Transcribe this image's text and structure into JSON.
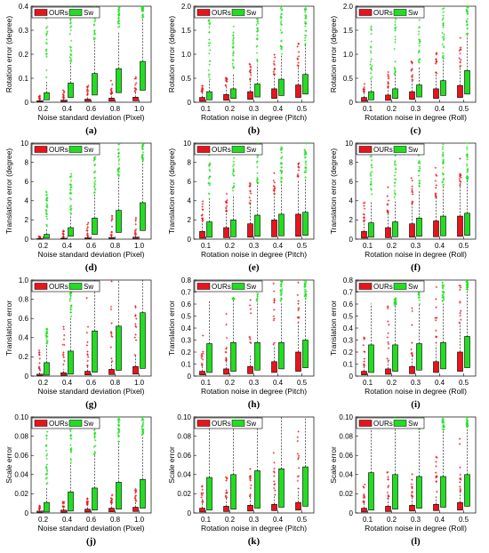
{
  "colors": {
    "ours": "#e8141c",
    "sw": "#22dd22",
    "whisker": "#000000"
  },
  "legend": {
    "ours": "OURs",
    "sw": "Sw"
  },
  "chart_data": [
    {
      "type": "box",
      "label": "(a)",
      "ylabel": "Rotation error (degree)",
      "xlabel": "Noise standard deviation (Pixel)",
      "categories": [
        "0.2",
        "0.4",
        "0.6",
        "0.8",
        "1.0"
      ],
      "ylim": [
        0,
        0.4
      ],
      "yticks": [
        "0",
        "0.1",
        "0.2",
        "0.3",
        "0.4"
      ],
      "series": [
        {
          "name": "OURs",
          "q1": [
            0.002,
            0.003,
            0.004,
            0.005,
            0.006
          ],
          "q3": [
            0.006,
            0.009,
            0.013,
            0.017,
            0.021
          ],
          "outlier_top": [
            0.03,
            0.05,
            0.07,
            0.09,
            0.11
          ]
        },
        {
          "name": "Sw",
          "q1": [
            0.01,
            0.02,
            0.03,
            0.04,
            0.05
          ],
          "q3": [
            0.04,
            0.08,
            0.12,
            0.14,
            0.17
          ],
          "outlier_top": [
            0.4,
            0.4,
            0.4,
            0.4,
            0.4
          ]
        }
      ]
    },
    {
      "type": "box",
      "label": "(b)",
      "ylabel": "Rotation error (degree)",
      "xlabel": "Rotation noise in degree (Pitch)",
      "categories": [
        "0.1",
        "0.2",
        "0.3",
        "0.4",
        "0.5"
      ],
      "ylim": [
        0,
        2
      ],
      "yticks": [
        "0",
        "0.5",
        "1.0",
        "1.5",
        "2.0"
      ],
      "series": [
        {
          "name": "OURs",
          "q1": [
            0.02,
            0.04,
            0.06,
            0.08,
            0.1
          ],
          "q3": [
            0.1,
            0.16,
            0.22,
            0.28,
            0.36
          ],
          "outlier_top": [
            0.35,
            0.55,
            0.8,
            1.0,
            1.3
          ]
        },
        {
          "name": "Sw",
          "q1": [
            0.05,
            0.08,
            0.11,
            0.14,
            0.17
          ],
          "q3": [
            0.22,
            0.28,
            0.38,
            0.48,
            0.58
          ],
          "outlier_top": [
            2,
            2,
            2,
            2,
            2
          ]
        }
      ]
    },
    {
      "type": "box",
      "label": "(c)",
      "ylabel": "Rotation error (degree)",
      "xlabel": "Rotation noise in degree (Roll)",
      "categories": [
        "0.1",
        "0.2",
        "0.3",
        "0.4",
        "0.5"
      ],
      "ylim": [
        0,
        2
      ],
      "yticks": [
        "0",
        "0.5",
        "1.0",
        "1.5",
        "2.0"
      ],
      "series": [
        {
          "name": "OURs",
          "q1": [
            0.02,
            0.04,
            0.06,
            0.08,
            0.1
          ],
          "q3": [
            0.1,
            0.15,
            0.22,
            0.28,
            0.35
          ],
          "outlier_top": [
            0.45,
            0.65,
            0.9,
            1.1,
            1.4
          ]
        },
        {
          "name": "Sw",
          "q1": [
            0.05,
            0.08,
            0.11,
            0.14,
            0.17
          ],
          "q3": [
            0.22,
            0.28,
            0.36,
            0.45,
            0.66
          ],
          "outlier_top": [
            2,
            2,
            2,
            2,
            2
          ]
        }
      ]
    },
    {
      "type": "box",
      "label": "(d)",
      "ylabel": "Translation error (degree)",
      "xlabel": "Noise standard deviation (Pixel)",
      "categories": [
        "0.2",
        "0.4",
        "0.6",
        "0.8",
        "1.0"
      ],
      "ylim": [
        0,
        10
      ],
      "yticks": [
        "0",
        "2",
        "4",
        "6",
        "8",
        "10"
      ],
      "series": [
        {
          "name": "OURs",
          "q1": [
            0.02,
            0.03,
            0.04,
            0.05,
            0.06
          ],
          "q3": [
            0.06,
            0.1,
            0.14,
            0.18,
            0.22
          ],
          "outlier_top": [
            0.5,
            1.0,
            1.7,
            2.5,
            3.0
          ]
        },
        {
          "name": "Sw",
          "q1": [
            0.1,
            0.3,
            0.5,
            0.7,
            0.9
          ],
          "q3": [
            0.5,
            1.2,
            2.2,
            3.0,
            3.8
          ],
          "outlier_top": [
            5,
            7,
            9.5,
            10,
            10
          ]
        }
      ]
    },
    {
      "type": "box",
      "label": "(e)",
      "ylabel": "Translation error (degree)",
      "xlabel": "Rotation noise in degree (Pitch)",
      "categories": [
        "0.1",
        "0.2",
        "0.3",
        "0.4",
        "0.5"
      ],
      "ylim": [
        0,
        10
      ],
      "yticks": [
        "0",
        "2",
        "4",
        "6",
        "8",
        "10"
      ],
      "series": [
        {
          "name": "OURs",
          "q1": [
            0.1,
            0.15,
            0.2,
            0.25,
            0.3
          ],
          "q3": [
            0.8,
            1.2,
            1.6,
            2.0,
            2.6
          ],
          "outlier_top": [
            4,
            5,
            6,
            7,
            8
          ]
        },
        {
          "name": "Sw",
          "q1": [
            0.2,
            0.25,
            0.3,
            0.35,
            0.4
          ],
          "q3": [
            1.8,
            2.0,
            2.5,
            2.6,
            2.8
          ],
          "outlier_top": [
            10,
            10,
            10,
            10,
            10
          ]
        }
      ]
    },
    {
      "type": "box",
      "label": "(f)",
      "ylabel": "Translation error (degree)",
      "xlabel": "Rotation noise in degree (Roll)",
      "categories": [
        "0.1",
        "0.2",
        "0.3",
        "0.4",
        "0.5"
      ],
      "ylim": [
        0,
        10
      ],
      "yticks": [
        "0",
        "2",
        "4",
        "6",
        "8",
        "10"
      ],
      "series": [
        {
          "name": "OURs",
          "q1": [
            0.1,
            0.15,
            0.2,
            0.25,
            0.3
          ],
          "q3": [
            0.8,
            1.2,
            1.6,
            1.9,
            2.4
          ],
          "outlier_top": [
            4,
            5.5,
            6.5,
            7.5,
            8.5
          ]
        },
        {
          "name": "Sw",
          "q1": [
            0.2,
            0.25,
            0.3,
            0.35,
            0.4
          ],
          "q3": [
            1.7,
            1.8,
            2.2,
            2.4,
            2.7
          ],
          "outlier_top": [
            10,
            10,
            10,
            10,
            10
          ]
        }
      ]
    },
    {
      "type": "box",
      "label": "(g)",
      "ylabel": "Translation error",
      "xlabel": "Noise standard deviation (Pixel)",
      "categories": [
        "0.2",
        "0.4",
        "0.6",
        "0.8",
        "1.0"
      ],
      "ylim": [
        0,
        1
      ],
      "yticks": [
        "0",
        "0.2",
        "0.4",
        "0.6",
        "0.8",
        "1.0"
      ],
      "series": [
        {
          "name": "OURs",
          "q1": [
            0.005,
            0.008,
            0.012,
            0.016,
            0.02
          ],
          "q3": [
            0.02,
            0.035,
            0.05,
            0.07,
            0.1
          ],
          "outlier_top": [
            0.3,
            0.6,
            0.9,
            1.0,
            1.0
          ]
        },
        {
          "name": "Sw",
          "q1": [
            0.01,
            0.02,
            0.04,
            0.06,
            0.08
          ],
          "q3": [
            0.14,
            0.26,
            0.47,
            0.52,
            0.66
          ],
          "outlier_top": [
            0.5,
            0.9,
            1.0,
            1.0,
            1.0
          ]
        }
      ]
    },
    {
      "type": "box",
      "label": "(h)",
      "ylabel": "Translation error",
      "xlabel": "Rotation noise in degree (Pitch)",
      "categories": [
        "0.1",
        "0.2",
        "0.3",
        "0.4",
        "0.5"
      ],
      "ylim": [
        0,
        0.8
      ],
      "yticks": [
        "0",
        "0.1",
        "0.2",
        "0.3",
        "0.4",
        "0.5",
        "0.6",
        "0.7",
        "0.8"
      ],
      "series": [
        {
          "name": "OURs",
          "q1": [
            0.01,
            0.015,
            0.02,
            0.03,
            0.04
          ],
          "q3": [
            0.04,
            0.06,
            0.08,
            0.12,
            0.2
          ],
          "outlier_top": [
            0.5,
            0.6,
            0.8,
            0.8,
            0.8
          ]
        },
        {
          "name": "Sw",
          "q1": [
            0.03,
            0.04,
            0.05,
            0.06,
            0.07
          ],
          "q3": [
            0.27,
            0.28,
            0.28,
            0.28,
            0.3
          ],
          "outlier_top": [
            0.55,
            0.65,
            0.8,
            0.8,
            0.8
          ]
        }
      ]
    },
    {
      "type": "box",
      "label": "(i)",
      "ylabel": "Translation error",
      "xlabel": "Rotation noise in degree (Roll)",
      "categories": [
        "0.1",
        "0.2",
        "0.3",
        "0.4",
        "0.5"
      ],
      "ylim": [
        0,
        0.8
      ],
      "yticks": [
        "0",
        "0.1",
        "0.2",
        "0.3",
        "0.4",
        "0.5",
        "0.6",
        "0.7",
        "0.8"
      ],
      "series": [
        {
          "name": "OURs",
          "q1": [
            0.01,
            0.015,
            0.02,
            0.03,
            0.04
          ],
          "q3": [
            0.04,
            0.06,
            0.08,
            0.12,
            0.2
          ],
          "outlier_top": [
            0.5,
            0.6,
            0.8,
            0.8,
            0.8
          ]
        },
        {
          "name": "Sw",
          "q1": [
            0.03,
            0.04,
            0.05,
            0.06,
            0.07
          ],
          "q3": [
            0.26,
            0.26,
            0.27,
            0.28,
            0.33
          ],
          "outlier_top": [
            0.55,
            0.65,
            0.8,
            0.8,
            0.8
          ]
        }
      ]
    },
    {
      "type": "box",
      "label": "(j)",
      "ylabel": "Scale error",
      "xlabel": "Noise standard deviation (Pixel)",
      "categories": [
        "0.2",
        "0.4",
        "0.6",
        "0.8",
        "1.0"
      ],
      "ylim": [
        0,
        0.1
      ],
      "yticks": [
        "0",
        "0.02",
        "0.04",
        "0.06",
        "0.08",
        "0.10"
      ],
      "series": [
        {
          "name": "OURs",
          "q1": [
            0.0005,
            0.0008,
            0.001,
            0.0013,
            0.0016
          ],
          "q3": [
            0.002,
            0.003,
            0.004,
            0.005,
            0.006
          ],
          "outlier_top": [
            0.008,
            0.012,
            0.016,
            0.02,
            0.025
          ]
        },
        {
          "name": "Sw",
          "q1": [
            0.001,
            0.002,
            0.003,
            0.004,
            0.005
          ],
          "q3": [
            0.011,
            0.022,
            0.026,
            0.032,
            0.035
          ],
          "outlier_top": [
            0.1,
            0.1,
            0.1,
            0.1,
            0.1
          ]
        }
      ]
    },
    {
      "type": "box",
      "label": "(k)",
      "ylabel": "Scale error",
      "xlabel": "Rotation noise in degree (Pitch)",
      "categories": [
        "0.1",
        "0.2",
        "0.3",
        "0.4",
        "0.5"
      ],
      "ylim": [
        0,
        0.1
      ],
      "yticks": [
        "0",
        "0.02",
        "0.04",
        "0.06",
        "0.08",
        "0.10"
      ],
      "series": [
        {
          "name": "OURs",
          "q1": [
            0.001,
            0.0015,
            0.002,
            0.0025,
            0.003
          ],
          "q3": [
            0.005,
            0.007,
            0.008,
            0.009,
            0.011
          ],
          "outlier_top": [
            0.03,
            0.045,
            0.06,
            0.07,
            0.085
          ]
        },
        {
          "name": "Sw",
          "q1": [
            0.003,
            0.004,
            0.005,
            0.006,
            0.007
          ],
          "q3": [
            0.037,
            0.04,
            0.044,
            0.046,
            0.048
          ],
          "outlier_top": [
            0.1,
            0.1,
            0.1,
            0.1,
            0.1
          ]
        }
      ]
    },
    {
      "type": "box",
      "label": "(l)",
      "ylabel": "Scale error",
      "xlabel": "Rotation noise in degree (Roll)",
      "categories": [
        "0.1",
        "0.2",
        "0.3",
        "0.4",
        "0.5"
      ],
      "ylim": [
        0,
        0.1
      ],
      "yticks": [
        "0",
        "0.02",
        "0.04",
        "0.06",
        "0.08",
        "0.10"
      ],
      "series": [
        {
          "name": "OURs",
          "q1": [
            0.001,
            0.0015,
            0.002,
            0.0025,
            0.003
          ],
          "q3": [
            0.005,
            0.007,
            0.008,
            0.009,
            0.011
          ],
          "outlier_top": [
            0.03,
            0.045,
            0.06,
            0.07,
            0.085
          ]
        },
        {
          "name": "Sw",
          "q1": [
            0.003,
            0.004,
            0.005,
            0.006,
            0.007
          ],
          "q3": [
            0.042,
            0.04,
            0.038,
            0.038,
            0.04
          ],
          "outlier_top": [
            0.1,
            0.1,
            0.1,
            0.1,
            0.1
          ]
        }
      ]
    }
  ]
}
